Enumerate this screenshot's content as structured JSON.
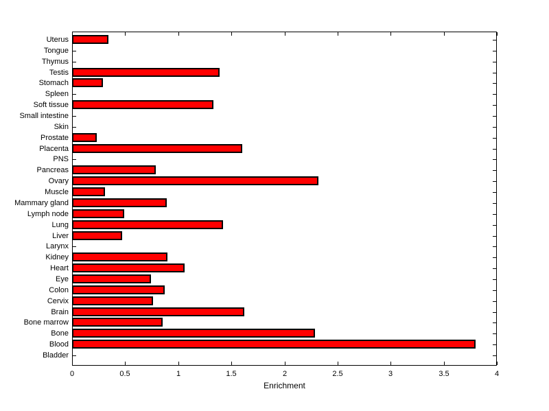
{
  "chart_data": {
    "type": "bar",
    "orientation": "horizontal",
    "xlabel": "Enrichment",
    "ylabel": "",
    "categories": [
      "Uterus",
      "Tongue",
      "Thymus",
      "Testis",
      "Stomach",
      "Spleen",
      "Soft tissue",
      "Small intestine",
      "Skin",
      "Prostate",
      "Placenta",
      "PNS",
      "Pancreas",
      "Ovary",
      "Muscle",
      "Mammary gland",
      "Lymph node",
      "Lung",
      "Liver",
      "Larynx",
      "Kidney",
      "Heart",
      "Eye",
      "Colon",
      "Cervix",
      "Brain",
      "Bone marrow",
      "Bone",
      "Blood",
      "Bladder"
    ],
    "categories_order": "top-to-bottom",
    "values": [
      0.34,
      0,
      0,
      1.39,
      0.29,
      0,
      1.33,
      0,
      0,
      0.23,
      1.6,
      0,
      0.79,
      2.32,
      0.31,
      0.89,
      0.49,
      1.42,
      0.47,
      0,
      0.9,
      1.06,
      0.74,
      0.87,
      0.76,
      1.62,
      0.85,
      2.29,
      3.8,
      0
    ],
    "xlim": [
      0,
      4
    ],
    "xticks": [
      0,
      0.5,
      1,
      1.5,
      2,
      2.5,
      3,
      3.5,
      4
    ],
    "xtick_labels": [
      "0",
      "0.5",
      "1",
      "1.5",
      "2",
      "2.5",
      "3",
      "3.5",
      "4"
    ],
    "grid": false,
    "legend": null,
    "bar_color": "#FF0000",
    "bar_edge_color": "#000000",
    "background_color": "#FFFFFF",
    "axis_color": "#000000"
  }
}
